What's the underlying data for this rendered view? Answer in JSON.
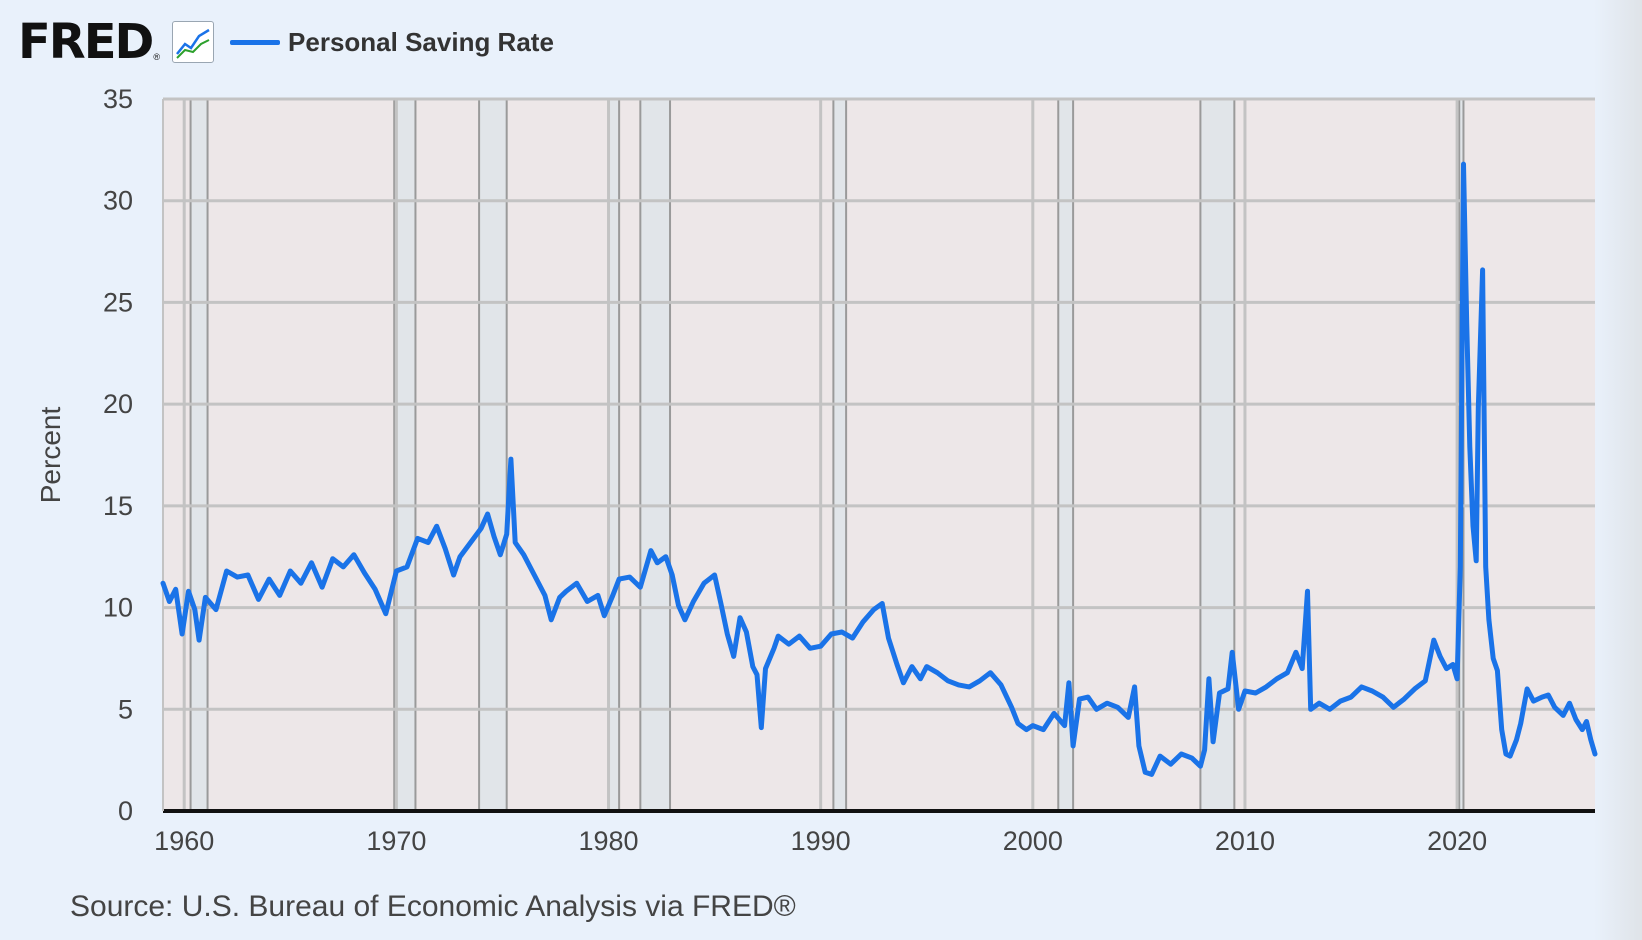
{
  "header": {
    "logo_text": "FRED",
    "logo_registered": "®",
    "logo_icon": "line-graph-icon",
    "legend_label": "Personal Saving Rate"
  },
  "colors": {
    "series": "#1a73e8",
    "plot_bg": "#ede7e8",
    "recession": "#e1e5e9",
    "page_bg": "#e9f1fb"
  },
  "source_text": "Source: U.S. Bureau of Economic Analysis via FRED®",
  "chart_data": {
    "type": "line",
    "ylabel": "Percent",
    "xlim": [
      1959.0,
      2026.5
    ],
    "ylim": [
      0,
      35
    ],
    "y_ticks": [
      0,
      5,
      10,
      15,
      20,
      25,
      30,
      35
    ],
    "x_ticks": [
      1960,
      1970,
      1980,
      1990,
      2000,
      2010,
      2020
    ],
    "grid": true,
    "legend_position": "top-left",
    "recessions": [
      [
        1960.3,
        1961.1
      ],
      [
        1969.9,
        1970.9
      ],
      [
        1973.9,
        1975.2
      ],
      [
        1980.0,
        1980.5
      ],
      [
        1981.5,
        1982.9
      ],
      [
        1990.6,
        1991.2
      ],
      [
        2001.2,
        2001.9
      ],
      [
        2007.9,
        2009.5
      ],
      [
        2020.1,
        2020.3
      ]
    ],
    "series": [
      {
        "name": "Personal Saving Rate",
        "points": [
          [
            1959.0,
            11.2
          ],
          [
            1959.3,
            10.3
          ],
          [
            1959.6,
            10.9
          ],
          [
            1959.9,
            8.7
          ],
          [
            1960.2,
            10.8
          ],
          [
            1960.5,
            9.9
          ],
          [
            1960.7,
            8.4
          ],
          [
            1961.0,
            10.5
          ],
          [
            1961.5,
            9.9
          ],
          [
            1962.0,
            11.8
          ],
          [
            1962.5,
            11.5
          ],
          [
            1963.0,
            11.6
          ],
          [
            1963.5,
            10.4
          ],
          [
            1964.0,
            11.4
          ],
          [
            1964.5,
            10.6
          ],
          [
            1965.0,
            11.8
          ],
          [
            1965.5,
            11.2
          ],
          [
            1966.0,
            12.2
          ],
          [
            1966.5,
            11.0
          ],
          [
            1967.0,
            12.4
          ],
          [
            1967.5,
            12.0
          ],
          [
            1968.0,
            12.6
          ],
          [
            1968.5,
            11.7
          ],
          [
            1969.0,
            10.9
          ],
          [
            1969.5,
            9.7
          ],
          [
            1970.0,
            11.8
          ],
          [
            1970.5,
            12.0
          ],
          [
            1971.0,
            13.4
          ],
          [
            1971.5,
            13.2
          ],
          [
            1971.9,
            14.0
          ],
          [
            1972.3,
            12.9
          ],
          [
            1972.7,
            11.6
          ],
          [
            1973.0,
            12.5
          ],
          [
            1973.5,
            13.2
          ],
          [
            1974.0,
            13.9
          ],
          [
            1974.3,
            14.6
          ],
          [
            1974.6,
            13.5
          ],
          [
            1974.9,
            12.6
          ],
          [
            1975.2,
            13.6
          ],
          [
            1975.4,
            17.3
          ],
          [
            1975.6,
            13.2
          ],
          [
            1976.0,
            12.6
          ],
          [
            1976.5,
            11.6
          ],
          [
            1977.0,
            10.6
          ],
          [
            1977.3,
            9.4
          ],
          [
            1977.7,
            10.5
          ],
          [
            1978.0,
            10.8
          ],
          [
            1978.5,
            11.2
          ],
          [
            1979.0,
            10.3
          ],
          [
            1979.5,
            10.6
          ],
          [
            1979.8,
            9.6
          ],
          [
            1980.2,
            10.6
          ],
          [
            1980.5,
            11.4
          ],
          [
            1981.0,
            11.5
          ],
          [
            1981.5,
            11.0
          ],
          [
            1982.0,
            12.8
          ],
          [
            1982.3,
            12.2
          ],
          [
            1982.7,
            12.5
          ],
          [
            1983.0,
            11.6
          ],
          [
            1983.3,
            10.1
          ],
          [
            1983.6,
            9.4
          ],
          [
            1984.0,
            10.3
          ],
          [
            1984.5,
            11.2
          ],
          [
            1985.0,
            11.6
          ],
          [
            1985.3,
            10.2
          ],
          [
            1985.6,
            8.7
          ],
          [
            1985.9,
            7.6
          ],
          [
            1986.2,
            9.5
          ],
          [
            1986.5,
            8.8
          ],
          [
            1986.8,
            7.1
          ],
          [
            1987.0,
            6.7
          ],
          [
            1987.2,
            4.1
          ],
          [
            1987.4,
            7.0
          ],
          [
            1987.8,
            8.0
          ],
          [
            1988.0,
            8.6
          ],
          [
            1988.5,
            8.2
          ],
          [
            1989.0,
            8.6
          ],
          [
            1989.5,
            8.0
          ],
          [
            1990.0,
            8.1
          ],
          [
            1990.5,
            8.7
          ],
          [
            1991.0,
            8.8
          ],
          [
            1991.5,
            8.5
          ],
          [
            1992.0,
            9.3
          ],
          [
            1992.5,
            9.9
          ],
          [
            1992.9,
            10.2
          ],
          [
            1993.2,
            8.5
          ],
          [
            1993.6,
            7.2
          ],
          [
            1993.9,
            6.3
          ],
          [
            1994.3,
            7.1
          ],
          [
            1994.7,
            6.5
          ],
          [
            1995.0,
            7.1
          ],
          [
            1995.5,
            6.8
          ],
          [
            1996.0,
            6.4
          ],
          [
            1996.5,
            6.2
          ],
          [
            1997.0,
            6.1
          ],
          [
            1997.5,
            6.4
          ],
          [
            1998.0,
            6.8
          ],
          [
            1998.5,
            6.2
          ],
          [
            1999.0,
            5.1
          ],
          [
            1999.3,
            4.3
          ],
          [
            1999.7,
            4.0
          ],
          [
            2000.0,
            4.2
          ],
          [
            2000.5,
            4.0
          ],
          [
            2001.0,
            4.8
          ],
          [
            2001.5,
            4.2
          ],
          [
            2001.7,
            6.3
          ],
          [
            2001.9,
            3.2
          ],
          [
            2002.2,
            5.5
          ],
          [
            2002.6,
            5.6
          ],
          [
            2003.0,
            5.0
          ],
          [
            2003.5,
            5.3
          ],
          [
            2004.0,
            5.1
          ],
          [
            2004.5,
            4.6
          ],
          [
            2004.8,
            6.1
          ],
          [
            2005.0,
            3.2
          ],
          [
            2005.3,
            1.9
          ],
          [
            2005.6,
            1.8
          ],
          [
            2006.0,
            2.7
          ],
          [
            2006.5,
            2.3
          ],
          [
            2007.0,
            2.8
          ],
          [
            2007.5,
            2.6
          ],
          [
            2007.9,
            2.2
          ],
          [
            2008.1,
            3.0
          ],
          [
            2008.3,
            6.5
          ],
          [
            2008.5,
            3.4
          ],
          [
            2008.8,
            5.8
          ],
          [
            2009.2,
            6.0
          ],
          [
            2009.4,
            7.8
          ],
          [
            2009.7,
            5.0
          ],
          [
            2010.0,
            5.9
          ],
          [
            2010.5,
            5.8
          ],
          [
            2011.0,
            6.1
          ],
          [
            2011.5,
            6.5
          ],
          [
            2012.0,
            6.8
          ],
          [
            2012.4,
            7.8
          ],
          [
            2012.7,
            7.0
          ],
          [
            2012.95,
            10.8
          ],
          [
            2013.1,
            5.0
          ],
          [
            2013.5,
            5.3
          ],
          [
            2014.0,
            5.0
          ],
          [
            2014.5,
            5.4
          ],
          [
            2015.0,
            5.6
          ],
          [
            2015.5,
            6.1
          ],
          [
            2016.0,
            5.9
          ],
          [
            2016.5,
            5.6
          ],
          [
            2017.0,
            5.1
          ],
          [
            2017.5,
            5.5
          ],
          [
            2018.0,
            6.0
          ],
          [
            2018.5,
            6.4
          ],
          [
            2018.9,
            8.4
          ],
          [
            2019.2,
            7.6
          ],
          [
            2019.5,
            7.0
          ],
          [
            2019.8,
            7.2
          ],
          [
            2020.0,
            6.5
          ],
          [
            2020.15,
            12.0
          ],
          [
            2020.3,
            31.8
          ],
          [
            2020.45,
            24.0
          ],
          [
            2020.6,
            17.9
          ],
          [
            2020.75,
            14.0
          ],
          [
            2020.9,
            12.3
          ],
          [
            2021.0,
            19.8
          ],
          [
            2021.2,
            26.6
          ],
          [
            2021.35,
            12.0
          ],
          [
            2021.5,
            9.4
          ],
          [
            2021.7,
            7.5
          ],
          [
            2021.9,
            6.9
          ],
          [
            2022.1,
            4.0
          ],
          [
            2022.3,
            2.8
          ],
          [
            2022.5,
            2.7
          ],
          [
            2022.8,
            3.5
          ],
          [
            2023.0,
            4.3
          ],
          [
            2023.3,
            6.0
          ],
          [
            2023.6,
            5.4
          ],
          [
            2024.0,
            5.6
          ],
          [
            2024.3,
            5.7
          ],
          [
            2024.6,
            5.1
          ],
          [
            2025.0,
            4.7
          ],
          [
            2025.3,
            5.3
          ],
          [
            2025.6,
            4.5
          ],
          [
            2025.9,
            4.0
          ],
          [
            2026.1,
            4.4
          ],
          [
            2026.3,
            3.5
          ],
          [
            2026.5,
            2.8
          ]
        ]
      }
    ]
  }
}
